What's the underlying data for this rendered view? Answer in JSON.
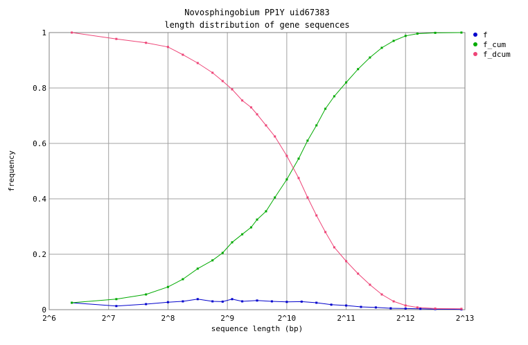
{
  "chart_data": {
    "type": "line",
    "title": "Novosphingobium PP1Y uid67383",
    "subtitle": "length distribution of gene sequences",
    "xlabel": "sequence length (bp)",
    "ylabel": "frequency",
    "x_scale": "log2",
    "xlim_log2": [
      6,
      13
    ],
    "ylim": [
      0,
      1
    ],
    "x_ticks": [
      "2^6",
      "2^7",
      "2^8",
      "2^9",
      "2^10",
      "2^11",
      "2^12",
      "2^13"
    ],
    "y_ticks": [
      "0",
      "0.2",
      "0.4",
      "0.6",
      "0.8",
      "1"
    ],
    "grid": true,
    "legend_position": "right",
    "series": [
      {
        "name": "f",
        "color": "#0000cc",
        "x_log2": [
          6.38,
          7.13,
          7.63,
          8.0,
          8.25,
          8.5,
          8.75,
          8.92,
          9.08,
          9.25,
          9.5,
          9.75,
          10.0,
          10.25,
          10.5,
          10.75,
          11.0,
          11.25,
          11.5,
          11.75,
          12.0,
          12.25,
          12.5,
          12.94
        ],
        "values": [
          0.025,
          0.013,
          0.02,
          0.027,
          0.03,
          0.038,
          0.03,
          0.029,
          0.038,
          0.03,
          0.033,
          0.03,
          0.028,
          0.029,
          0.025,
          0.018,
          0.015,
          0.01,
          0.008,
          0.005,
          0.004,
          0.003,
          0.002,
          0.001
        ]
      },
      {
        "name": "f_cum",
        "color": "#00aa00",
        "x_log2": [
          6.38,
          7.13,
          7.63,
          8.0,
          8.25,
          8.5,
          8.75,
          8.92,
          9.08,
          9.25,
          9.4,
          9.5,
          9.65,
          9.8,
          10.0,
          10.2,
          10.35,
          10.5,
          10.65,
          10.8,
          11.0,
          11.2,
          11.4,
          11.6,
          11.8,
          12.0,
          12.2,
          12.5,
          12.94
        ],
        "values": [
          0.025,
          0.038,
          0.055,
          0.082,
          0.11,
          0.148,
          0.178,
          0.205,
          0.243,
          0.272,
          0.297,
          0.325,
          0.355,
          0.405,
          0.47,
          0.545,
          0.61,
          0.665,
          0.725,
          0.77,
          0.82,
          0.868,
          0.91,
          0.945,
          0.97,
          0.988,
          0.996,
          0.999,
          1.0
        ]
      },
      {
        "name": "f_dcum",
        "color": "#ee4477",
        "x_log2": [
          6.38,
          7.13,
          7.63,
          8.0,
          8.25,
          8.5,
          8.75,
          8.92,
          9.08,
          9.25,
          9.4,
          9.5,
          9.65,
          9.8,
          10.0,
          10.2,
          10.35,
          10.5,
          10.65,
          10.8,
          11.0,
          11.2,
          11.4,
          11.6,
          11.8,
          12.0,
          12.2,
          12.5,
          12.94
        ],
        "values": [
          1.0,
          0.977,
          0.963,
          0.948,
          0.92,
          0.89,
          0.855,
          0.825,
          0.795,
          0.755,
          0.73,
          0.705,
          0.665,
          0.625,
          0.555,
          0.475,
          0.405,
          0.34,
          0.28,
          0.225,
          0.175,
          0.13,
          0.09,
          0.055,
          0.03,
          0.015,
          0.008,
          0.004,
          0.003
        ]
      }
    ]
  }
}
